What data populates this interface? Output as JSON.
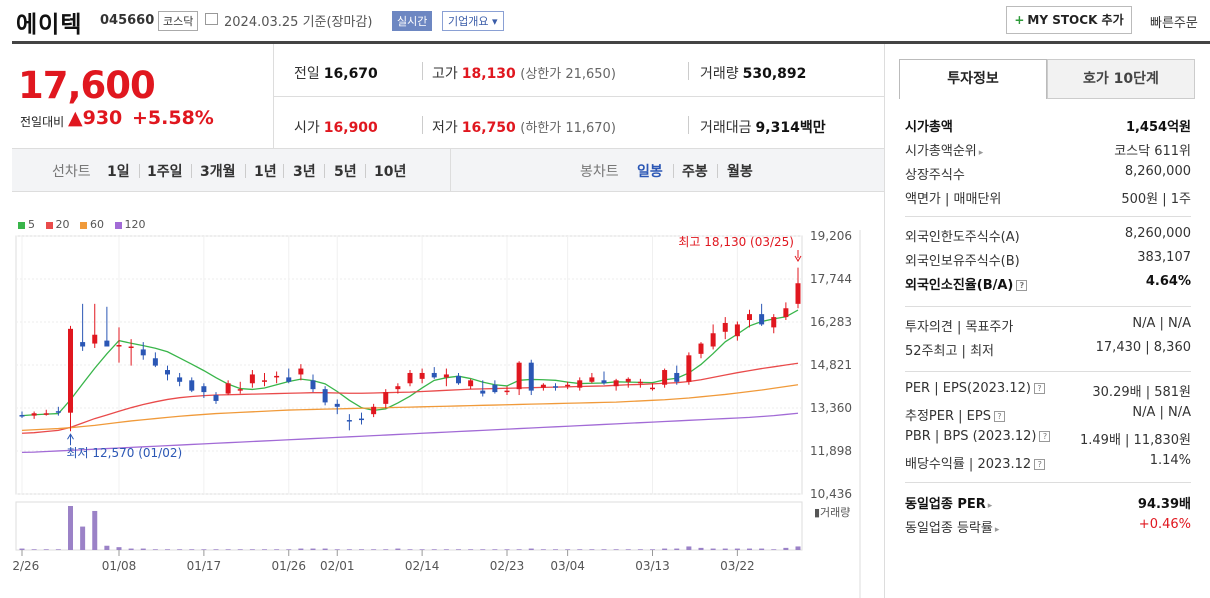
{
  "header": {
    "company_name": "에이텍",
    "stock_code": "045660",
    "market": "코스닥",
    "date_basis": "2024.03.25  기준(장마감)",
    "realtime_label": "실시간",
    "overview_label": "기업개요 ▾",
    "mystock_label": "MY STOCK 추가",
    "mystock_plus": "+",
    "quick_order_label": "빠른주문"
  },
  "price": {
    "current": "17,600",
    "change_label": "전일대비",
    "change": "▲930",
    "change_pct": "+5.58%",
    "color_up": "#e0171f",
    "color_down": "#2b57b5"
  },
  "quote": {
    "prev_label": "전일",
    "prev": "16,670",
    "high_label": "고가",
    "high": "18,130",
    "upper_limit_label": "(상한가 21,650)",
    "volume_label": "거래량",
    "volume": "530,892",
    "open_label": "시가",
    "open": "16,900",
    "low_label": "저가",
    "low": "16,750",
    "lower_limit_label": "(하한가 11,670)",
    "amount_label": "거래대금",
    "amount": "9,314",
    "amount_unit": "백만"
  },
  "period_bar": {
    "line_chart_label": "선차트",
    "periods": [
      "1일",
      "1주일",
      "3개월",
      "1년",
      "3년",
      "5년",
      "10년"
    ],
    "candle_label": "봉차트",
    "candle_periods": [
      "일봉",
      "주봉",
      "월봉"
    ],
    "selected_candle": "일봉"
  },
  "legend": [
    {
      "label": "5",
      "color": "#39b54a"
    },
    {
      "label": "20",
      "color": "#e94b4b"
    },
    {
      "label": "60",
      "color": "#f09a3a"
    },
    {
      "label": "120",
      "color": "#a26bd6"
    }
  ],
  "chart_data": {
    "type": "candlestick",
    "y_ticks": [
      "19,206",
      "17,744",
      "16,283",
      "14,821",
      "13,360",
      "11,898",
      "10,436"
    ],
    "ylim": [
      10436,
      19206
    ],
    "x_ticks": [
      {
        "label": "12/26",
        "index": 0
      },
      {
        "label": "01/08",
        "index": 8
      },
      {
        "label": "01/17",
        "index": 15
      },
      {
        "label": "01/26",
        "index": 22
      },
      {
        "label": "02/01",
        "index": 26
      },
      {
        "label": "02/14",
        "index": 33
      },
      {
        "label": "02/23",
        "index": 40
      },
      {
        "label": "03/04",
        "index": 45
      },
      {
        "label": "03/13",
        "index": 52
      },
      {
        "label": "03/22",
        "index": 59
      }
    ],
    "annotation_high": "최고 18,130 (03/25)",
    "annotation_low": "최저 12,570 (01/02)",
    "volume_label": "거래량",
    "candles": [
      [
        13120,
        13240,
        13020,
        13100
      ],
      [
        13100,
        13240,
        12990,
        13180
      ],
      [
        13180,
        13300,
        13100,
        13180
      ],
      [
        13250,
        13400,
        13100,
        13200
      ],
      [
        13200,
        16150,
        12570,
        16050
      ],
      [
        15600,
        16900,
        15300,
        15450
      ],
      [
        15550,
        16900,
        15400,
        15850
      ],
      [
        15650,
        16800,
        15500,
        15450
      ],
      [
        15450,
        16100,
        14900,
        15500
      ],
      [
        15450,
        15700,
        14800,
        15450
      ],
      [
        15350,
        15600,
        15000,
        15150
      ],
      [
        15050,
        15250,
        14750,
        14800
      ],
      [
        14650,
        14800,
        14300,
        14500
      ],
      [
        14400,
        14550,
        14100,
        14250
      ],
      [
        14300,
        14400,
        13900,
        13950
      ],
      [
        14100,
        14200,
        13700,
        13900
      ],
      [
        13800,
        13900,
        13500,
        13600
      ],
      [
        13850,
        14300,
        13800,
        14200
      ],
      [
        14000,
        14250,
        13850,
        14000
      ],
      [
        14200,
        14650,
        14050,
        14500
      ],
      [
        14300,
        14550,
        14100,
        14300
      ],
      [
        14400,
        14600,
        14200,
        14450
      ],
      [
        14400,
        14700,
        14200,
        14250
      ],
      [
        14500,
        14850,
        14300,
        14700
      ],
      [
        14300,
        14500,
        13900,
        14000
      ],
      [
        14000,
        14100,
        13450,
        13550
      ],
      [
        13500,
        13650,
        13150,
        13400
      ],
      [
        12950,
        13150,
        12600,
        12900
      ],
      [
        13000,
        13200,
        12800,
        12950
      ],
      [
        13150,
        13500,
        13050,
        13400
      ],
      [
        13500,
        14000,
        13350,
        13900
      ],
      [
        14000,
        14200,
        13850,
        14100
      ],
      [
        14200,
        14650,
        14100,
        14550
      ],
      [
        14350,
        14700,
        14200,
        14550
      ],
      [
        14550,
        14750,
        14350,
        14400
      ],
      [
        14400,
        14700,
        14100,
        14500
      ],
      [
        14450,
        14550,
        14150,
        14200
      ],
      [
        14100,
        14350,
        14000,
        14300
      ],
      [
        13950,
        14300,
        13750,
        13850
      ],
      [
        14150,
        14300,
        13850,
        13900
      ],
      [
        13950,
        14100,
        13800,
        13950
      ],
      [
        14000,
        14950,
        13800,
        14900
      ],
      [
        14900,
        15000,
        13800,
        13950
      ],
      [
        14050,
        14200,
        13950,
        14150
      ],
      [
        14100,
        14200,
        13950,
        14050
      ],
      [
        14100,
        14250,
        14000,
        14150
      ],
      [
        14050,
        14400,
        13950,
        14300
      ],
      [
        14250,
        14550,
        14200,
        14400
      ],
      [
        14300,
        14600,
        14150,
        14200
      ],
      [
        14100,
        14350,
        13950,
        14300
      ],
      [
        14250,
        14400,
        14050,
        14350
      ],
      [
        14200,
        14350,
        14050,
        14250
      ],
      [
        14050,
        14200,
        13950,
        14050
      ],
      [
        14150,
        14700,
        14050,
        14650
      ],
      [
        14550,
        14800,
        14150,
        14250
      ],
      [
        14250,
        15250,
        14150,
        15150
      ],
      [
        15200,
        15600,
        15050,
        15550
      ],
      [
        15450,
        16200,
        15350,
        15900
      ],
      [
        15950,
        16450,
        15700,
        16250
      ],
      [
        15800,
        16300,
        15650,
        16200
      ],
      [
        16350,
        16700,
        16100,
        16550
      ],
      [
        16550,
        16900,
        16150,
        16200
      ],
      [
        16100,
        16550,
        15900,
        16450
      ],
      [
        16450,
        16950,
        16350,
        16750
      ],
      [
        16900,
        18130,
        16750,
        17600
      ]
    ],
    "volume": [
      2,
      1,
      1,
      1,
      62,
      33,
      55,
      6,
      4,
      2,
      2,
      1,
      1,
      1,
      1,
      1,
      1,
      1,
      1,
      1,
      1,
      1,
      1,
      2,
      2,
      2,
      1,
      1,
      1,
      1,
      1,
      2,
      1,
      1,
      1,
      1,
      1,
      1,
      1,
      1,
      1,
      1,
      2,
      1,
      1,
      1,
      1,
      1,
      1,
      1,
      1,
      1,
      1,
      2,
      2,
      5,
      3,
      2,
      2,
      2,
      2,
      2,
      1,
      3,
      5
    ],
    "ma": {
      "5": [
        13100,
        13130,
        13150,
        13170,
        13640,
        14180,
        14710,
        15200,
        15650,
        15560,
        15480,
        15390,
        15270,
        15060,
        14850,
        14630,
        14390,
        14170,
        14020,
        13990,
        14040,
        14150,
        14260,
        14340,
        14290,
        14180,
        13920,
        13620,
        13370,
        13280,
        13330,
        13530,
        13760,
        14040,
        14300,
        14390,
        14440,
        14360,
        14240,
        14150,
        14110,
        14300,
        14330,
        14320,
        14300,
        14240,
        14190,
        14200,
        14210,
        14250,
        14240,
        14230,
        14220,
        14320,
        14370,
        14550,
        14840,
        15210,
        15610,
        15870,
        16150,
        16300,
        16390,
        16460,
        16690
      ],
      "20": [
        12500,
        12520,
        12560,
        12600,
        12700,
        12850,
        13000,
        13120,
        13250,
        13370,
        13480,
        13570,
        13650,
        13710,
        13750,
        13780,
        13800,
        13810,
        13820,
        13830,
        13840,
        13850,
        13860,
        13870,
        13880,
        13880,
        13870,
        13860,
        13860,
        13870,
        13880,
        13890,
        13900,
        13920,
        13940,
        13960,
        13980,
        14000,
        14010,
        14020,
        14030,
        14040,
        14050,
        14060,
        14070,
        14080,
        14090,
        14100,
        14110,
        14130,
        14150,
        14160,
        14180,
        14200,
        14220,
        14260,
        14320,
        14400,
        14480,
        14560,
        14630,
        14700,
        14760,
        14820,
        14880
      ],
      "60": [
        12600,
        12620,
        12640,
        12660,
        12690,
        12730,
        12770,
        12820,
        12870,
        12920,
        12960,
        13000,
        13040,
        13080,
        13110,
        13140,
        13170,
        13190,
        13210,
        13230,
        13250,
        13270,
        13290,
        13300,
        13310,
        13320,
        13330,
        13340,
        13350,
        13360,
        13370,
        13380,
        13390,
        13400,
        13410,
        13420,
        13430,
        13440,
        13450,
        13460,
        13470,
        13480,
        13490,
        13500,
        13510,
        13520,
        13530,
        13540,
        13550,
        13560,
        13580,
        13600,
        13620,
        13640,
        13670,
        13700,
        13740,
        13780,
        13820,
        13870,
        13920,
        13970,
        14030,
        14090,
        14150
      ],
      "120": [
        11850,
        11860,
        11880,
        11900,
        11920,
        11940,
        11960,
        11980,
        12000,
        12020,
        12040,
        12060,
        12080,
        12100,
        12120,
        12140,
        12160,
        12180,
        12200,
        12220,
        12240,
        12260,
        12280,
        12300,
        12320,
        12340,
        12360,
        12380,
        12400,
        12420,
        12440,
        12460,
        12480,
        12500,
        12520,
        12540,
        12560,
        12580,
        12600,
        12620,
        12640,
        12660,
        12680,
        12700,
        12720,
        12740,
        12760,
        12780,
        12800,
        12820,
        12840,
        12860,
        12880,
        12900,
        12920,
        12940,
        12960,
        12980,
        13000,
        13020,
        13040,
        13070,
        13100,
        13140,
        13180
      ]
    }
  },
  "tabs": {
    "invest": "투자정보",
    "hoga": "호가 10단계"
  },
  "info": {
    "g1": [
      {
        "k": "시가총액",
        "v": "1,454억원",
        "bold": true
      },
      {
        "k": "시가총액순위",
        "v": "코스닥 611위",
        "arrow": true
      },
      {
        "k": "상장주식수",
        "v": "8,260,000"
      },
      {
        "k": "액면가 | 매매단위",
        "v": "500원 | 1주"
      }
    ],
    "g2": [
      {
        "k": "외국인한도주식수(A)",
        "v": "8,260,000"
      },
      {
        "k": "외국인보유주식수(B)",
        "v": "383,107"
      },
      {
        "k": "외국인소진율(B/A)",
        "v": "4.64%",
        "bold": true,
        "q": true
      }
    ],
    "g3": [
      {
        "k": "투자의견 | 목표주가",
        "v": "N/A | N/A"
      },
      {
        "k": "52주최고 | 최저",
        "v": "17,430 | 8,360"
      }
    ],
    "g4": [
      {
        "k": "PER | EPS(2023.12)",
        "v": "30.29배 | 581원",
        "q": true
      },
      {
        "k": "추정PER | EPS",
        "v": "N/A | N/A",
        "q": true
      },
      {
        "k": "PBR | BPS (2023.12)",
        "v": "1.49배 | 11,830원",
        "q": true
      },
      {
        "k": "배당수익률 | 2023.12",
        "v": "1.14%",
        "q": true
      }
    ],
    "g5": [
      {
        "k": "동일업종 PER",
        "v": "94.39배",
        "bold": true,
        "arrow": true
      },
      {
        "k": "동일업종 등락률",
        "v": "+0.46%",
        "red": true,
        "arrow": true
      }
    ]
  }
}
